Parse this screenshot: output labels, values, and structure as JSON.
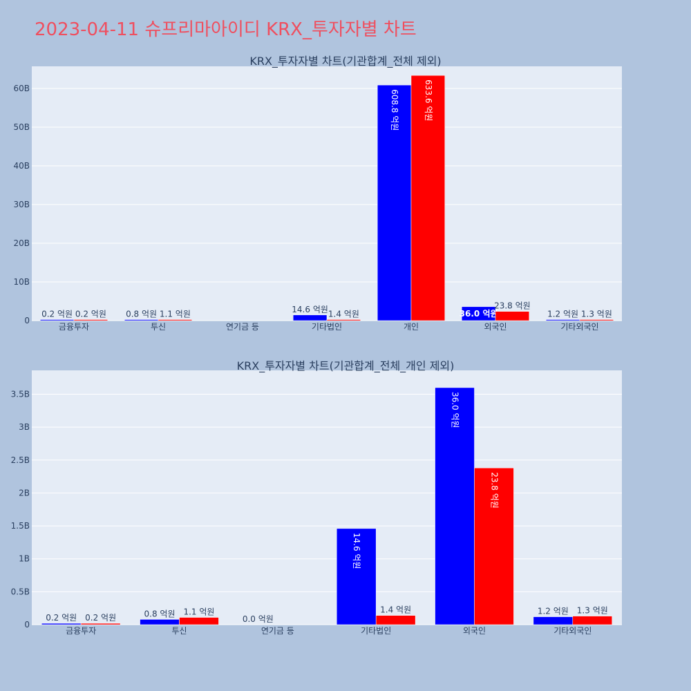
{
  "title": "2023-04-11 슈프리마아이디 KRX_투자자별 차트",
  "colors": {
    "background": "#b0c4de",
    "plot_bg": "#e5ecf6",
    "grid": "#ffffff",
    "title": "#ef4f5f",
    "text": "#2a3f5f",
    "series_blue": "#0000ff",
    "series_red": "#ff0000"
  },
  "chart_data": [
    {
      "type": "bar",
      "title": "KRX_투자자별 차트(기관합계_전체 제외)",
      "categories": [
        "금융투자",
        "투신",
        "연기금 등",
        "기타법인",
        "개인",
        "외국인",
        "기타외국인"
      ],
      "ytick_labels": [
        "0",
        "10B",
        "20B",
        "30B",
        "40B",
        "50B",
        "60B"
      ],
      "ytick_values": [
        0,
        10000000000,
        20000000000,
        30000000000,
        40000000000,
        50000000000,
        60000000000
      ],
      "ylim": [
        0,
        65000000000
      ],
      "series": [
        {
          "color": "#0000ff",
          "values": [
            20000000,
            80000000,
            0,
            1460000000,
            60880000000,
            3600000000,
            120000000
          ],
          "labels": [
            "0.2 억원",
            "0.8 억원",
            "",
            "14.6 억원",
            "608.8 억원",
            "36.0 억원",
            "1.2 억원"
          ]
        },
        {
          "color": "#ff0000",
          "values": [
            20000000,
            110000000,
            0,
            140000000,
            63360000000,
            2380000000,
            130000000
          ],
          "labels": [
            "0.2 억원",
            "1.1 억원",
            "",
            "1.4 억원",
            "633.6 억원",
            "23.8 억원",
            "1.3 억원"
          ]
        }
      ]
    },
    {
      "type": "bar",
      "title": "KRX_투자자별 차트(기관합계_전체_개인 제외)",
      "categories": [
        "금융투자",
        "투신",
        "연기금 등",
        "기타법인",
        "외국인",
        "기타외국인"
      ],
      "ytick_labels": [
        "0",
        "0.5B",
        "1B",
        "1.5B",
        "2B",
        "2.5B",
        "3B",
        "3.5B"
      ],
      "ytick_values": [
        0,
        500000000,
        1000000000,
        1500000000,
        2000000000,
        2500000000,
        3000000000,
        3500000000
      ],
      "ylim": [
        0,
        3820000000
      ],
      "series": [
        {
          "color": "#0000ff",
          "values": [
            20000000,
            80000000,
            0,
            1460000000,
            3600000000,
            120000000
          ],
          "labels": [
            "0.2 억원",
            "0.8 억원",
            "0.0 억원",
            "14.6 억원",
            "36.0 억원",
            "1.2 억원"
          ]
        },
        {
          "color": "#ff0000",
          "values": [
            20000000,
            110000000,
            0,
            140000000,
            2380000000,
            130000000
          ],
          "labels": [
            "0.2 억원",
            "1.1 억원",
            "",
            "1.4 억원",
            "23.8 억원",
            "1.3 억원"
          ]
        }
      ]
    }
  ]
}
